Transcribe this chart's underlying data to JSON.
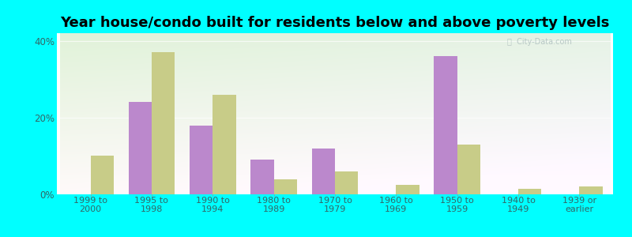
{
  "title": "Year house/condo built for residents below and above poverty levels",
  "categories": [
    "1999 to\n2000",
    "1995 to\n1998",
    "1990 to\n1994",
    "1980 to\n1989",
    "1970 to\n1979",
    "1960 to\n1969",
    "1950 to\n1959",
    "1940 to\n1949",
    "1939 or\nearlier"
  ],
  "below_poverty": [
    0,
    24,
    18,
    9,
    12,
    0,
    36,
    0,
    0
  ],
  "above_poverty": [
    10,
    37,
    26,
    4,
    6,
    2.5,
    13,
    1.5,
    2
  ],
  "below_color": "#bb88cc",
  "above_color": "#c8cc88",
  "background_color": "#00ffff",
  "ylim": [
    0,
    42
  ],
  "yticks": [
    0,
    20,
    40
  ],
  "ytick_labels": [
    "0%",
    "20%",
    "40%"
  ],
  "bar_width": 0.38,
  "title_fontsize": 13,
  "tick_fontsize": 8,
  "legend_fontsize": 9
}
